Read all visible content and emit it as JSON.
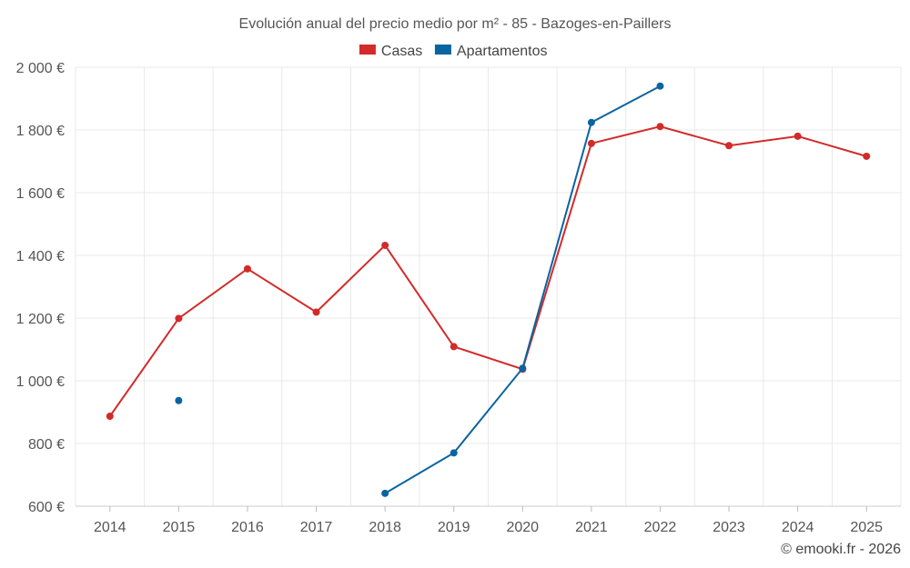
{
  "chart_data": {
    "type": "line",
    "title": "Evolución anual del precio medio por m² - 85 - Bazoges-en-Paillers",
    "categories": [
      "2014",
      "2015",
      "2016",
      "2017",
      "2018",
      "2019",
      "2020",
      "2021",
      "2022",
      "2023",
      "2024",
      "2025"
    ],
    "ylim": [
      600,
      2000
    ],
    "yticks": [
      600,
      800,
      1000,
      1200,
      1400,
      1600,
      1800,
      2000
    ],
    "ytick_labels": [
      "600 €",
      "800 €",
      "1 000 €",
      "1 200 €",
      "1 400 €",
      "1 600 €",
      "1 800 €",
      "2 000 €"
    ],
    "grid": true,
    "legend_position": "top-center",
    "series": [
      {
        "name": "Casas",
        "color": "#d32a2a",
        "values": [
          887,
          1199,
          1357,
          1219,
          1432,
          1109,
          1037,
          1757,
          1811,
          1750,
          1780,
          1716
        ]
      },
      {
        "name": "Apartamentos",
        "color": "#0a64a0",
        "values": [
          null,
          937,
          null,
          null,
          641,
          770,
          1040,
          1824,
          1940,
          null,
          null,
          null
        ]
      }
    ]
  },
  "credit": "© emooki.fr - 2026"
}
